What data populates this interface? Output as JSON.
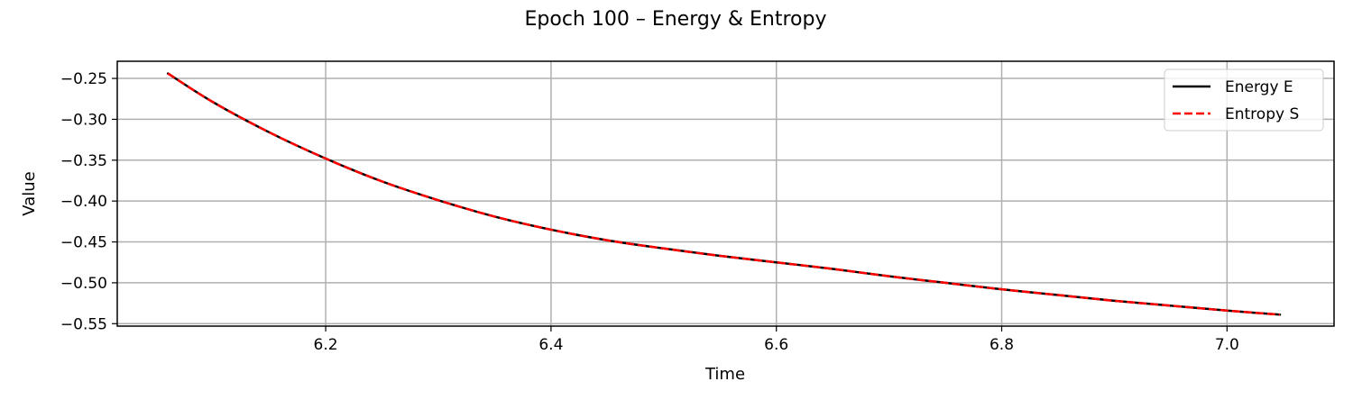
{
  "chart_data": {
    "type": "line",
    "title": "Epoch 100 – Energy & Entropy",
    "xlabel": "Time",
    "ylabel": "Value",
    "xlim": [
      6.015,
      7.095
    ],
    "ylim": [
      -0.553,
      -0.229
    ],
    "x_ticks": [
      6.2,
      6.4,
      6.6,
      6.8,
      7.0
    ],
    "x_tick_labels": [
      "6.2",
      "6.4",
      "6.6",
      "6.8",
      "7.0"
    ],
    "y_ticks": [
      -0.25,
      -0.3,
      -0.35,
      -0.4,
      -0.45,
      -0.5,
      -0.55
    ],
    "y_tick_labels": [
      "−0.25",
      "−0.30",
      "−0.35",
      "−0.40",
      "−0.45",
      "−0.50",
      "−0.55"
    ],
    "grid": true,
    "legend_position": "top-right",
    "x": [
      6.06,
      6.1,
      6.15,
      6.2,
      6.25,
      6.3,
      6.35,
      6.4,
      6.45,
      6.5,
      6.55,
      6.6,
      6.65,
      6.7,
      6.75,
      6.8,
      6.85,
      6.9,
      6.95,
      7.0,
      7.047
    ],
    "series": [
      {
        "name": "Energy E",
        "color": "#000000",
        "style": "solid",
        "values": [
          -0.244,
          -0.279,
          -0.316,
          -0.348,
          -0.376,
          -0.399,
          -0.419,
          -0.435,
          -0.448,
          -0.458,
          -0.467,
          -0.475,
          -0.483,
          -0.492,
          -0.5,
          -0.508,
          -0.515,
          -0.522,
          -0.528,
          -0.534,
          -0.539
        ]
      },
      {
        "name": "Entropy S",
        "color": "#ff0000",
        "style": "dashed",
        "values": [
          -0.244,
          -0.279,
          -0.316,
          -0.348,
          -0.376,
          -0.399,
          -0.419,
          -0.435,
          -0.448,
          -0.458,
          -0.467,
          -0.475,
          -0.483,
          -0.492,
          -0.5,
          -0.508,
          -0.515,
          -0.522,
          -0.528,
          -0.534,
          -0.539
        ]
      }
    ]
  }
}
